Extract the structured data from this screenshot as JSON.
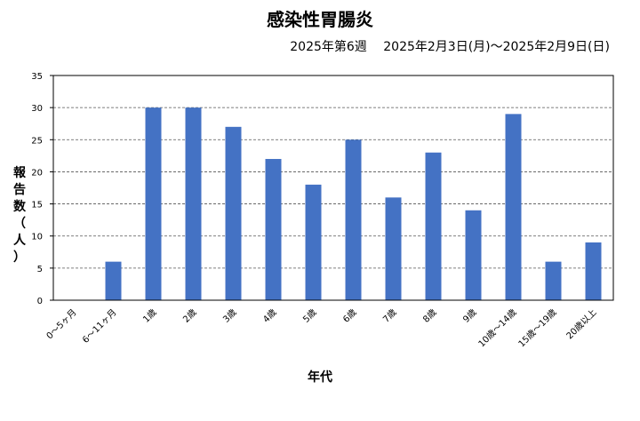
{
  "chart_data": {
    "type": "bar",
    "title": "感染性胃腸炎",
    "subtitle": "2025年第6週　 2025年2月3日(月)～2025年2月9日(日)",
    "xlabel": "年代",
    "ylabel": "報告数（人）",
    "categories": [
      "0～5ヶ月",
      "6～11ヶ月",
      "1歳",
      "2歳",
      "3歳",
      "4歳",
      "5歳",
      "6歳",
      "7歳",
      "8歳",
      "9歳",
      "10歳～14歳",
      "15歳～19歳",
      "20歳以上"
    ],
    "series": [
      {
        "values": [
          0,
          6,
          30,
          30,
          27,
          22,
          18,
          25,
          16,
          23,
          14,
          29,
          6,
          9
        ]
      }
    ],
    "ylim": [
      0,
      35
    ],
    "yticks": [
      0,
      5,
      10,
      15,
      20,
      25,
      30,
      35
    ],
    "grid": true,
    "bar_color": "#4472c4"
  }
}
